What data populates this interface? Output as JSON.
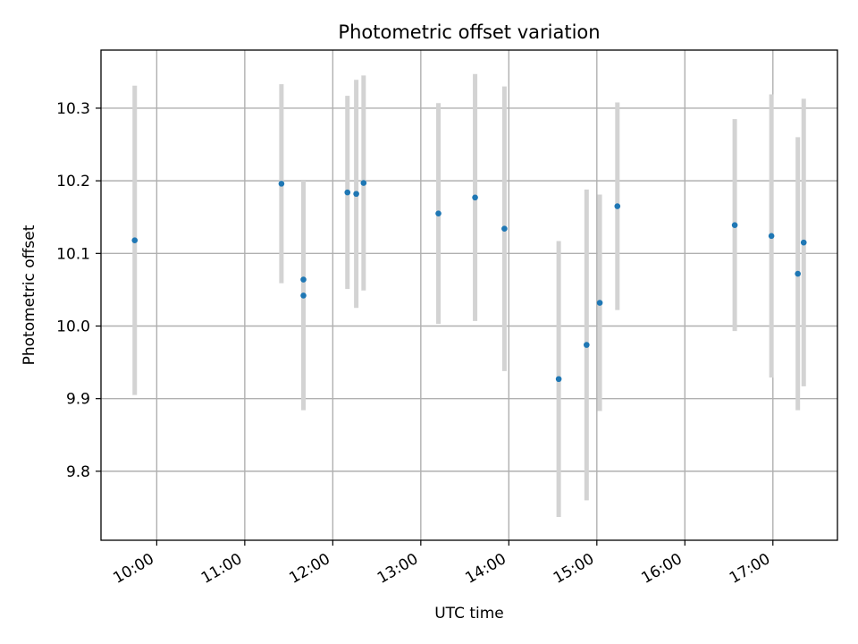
{
  "chart_data": {
    "type": "scatter",
    "title": "Photometric offset variation",
    "xlabel": "UTC time",
    "ylabel": "Photometric offset",
    "xlim": [
      "09:22",
      "17:44"
    ],
    "ylim": [
      9.705,
      10.38
    ],
    "x_ticks": [
      "10:00",
      "11:00",
      "12:00",
      "13:00",
      "14:00",
      "15:00",
      "16:00",
      "17:00"
    ],
    "y_ticks": [
      "9.8",
      "9.9",
      "10.0",
      "10.1",
      "10.2",
      "10.3"
    ],
    "grid": true,
    "legend": "none",
    "point_color": "#1f77b4",
    "errorbar_color": "#d3d3d3",
    "points": [
      {
        "x": "09:45",
        "y": 10.118,
        "err": 0.213
      },
      {
        "x": "11:25",
        "y": 10.196,
        "err": 0.137
      },
      {
        "x": "11:40",
        "y": 10.064,
        "err": 0.136
      },
      {
        "x": "11:40",
        "y": 10.042,
        "err": 0.158
      },
      {
        "x": "12:10",
        "y": 10.184,
        "err": 0.133
      },
      {
        "x": "12:16",
        "y": 10.182,
        "err": 0.157
      },
      {
        "x": "12:21",
        "y": 10.197,
        "err": 0.148
      },
      {
        "x": "13:12",
        "y": 10.155,
        "err": 0.152
      },
      {
        "x": "13:37",
        "y": 10.177,
        "err": 0.17
      },
      {
        "x": "13:57",
        "y": 10.134,
        "err": 0.196
      },
      {
        "x": "14:34",
        "y": 9.927,
        "err": 0.19
      },
      {
        "x": "14:53",
        "y": 9.974,
        "err": 0.214
      },
      {
        "x": "15:02",
        "y": 10.032,
        "err": 0.149
      },
      {
        "x": "15:14",
        "y": 10.165,
        "err": 0.143
      },
      {
        "x": "16:34",
        "y": 10.139,
        "err": 0.146
      },
      {
        "x": "16:59",
        "y": 10.124,
        "err": 0.195
      },
      {
        "x": "17:17",
        "y": 10.072,
        "err": 0.188
      },
      {
        "x": "17:21",
        "y": 10.115,
        "err": 0.198
      }
    ]
  }
}
